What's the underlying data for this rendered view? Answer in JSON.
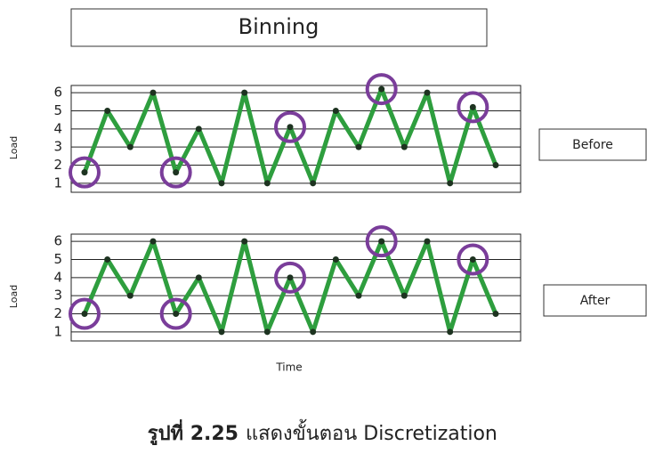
{
  "title": "Binning",
  "caption_label": "รูปที่ 2.25",
  "caption_text": "แสดงขั้นตอน Discretization",
  "chart_data": [
    {
      "type": "line",
      "label": "Before",
      "ylabel": "Load",
      "values": [
        1.6,
        5,
        3,
        6,
        1.6,
        4,
        1,
        6,
        1,
        4.1,
        1,
        5,
        3,
        6.2,
        3,
        6,
        1,
        5.2,
        2
      ],
      "ylim": [
        0.5,
        6.4
      ],
      "yticks": [
        1,
        2,
        3,
        4,
        5,
        6
      ],
      "grid": true,
      "color": "#2e9e3e",
      "marker_color": "#1d3320",
      "highlighted": [
        0,
        4,
        9,
        13,
        17
      ],
      "highlight_color": "#7a3d9a"
    },
    {
      "type": "line",
      "label": "After",
      "ylabel": "Load",
      "xlabel": "Time",
      "values": [
        2,
        5,
        3,
        6,
        2,
        4,
        1,
        6,
        1,
        4,
        1,
        5,
        3,
        6,
        3,
        6,
        1,
        5,
        2
      ],
      "ylim": [
        0.5,
        6.4
      ],
      "yticks": [
        1,
        2,
        3,
        4,
        5,
        6
      ],
      "grid": true,
      "color": "#2e9e3e",
      "marker_color": "#1d3320",
      "highlighted": [
        0,
        4,
        9,
        13,
        17
      ],
      "highlight_color": "#7a3d9a"
    }
  ]
}
